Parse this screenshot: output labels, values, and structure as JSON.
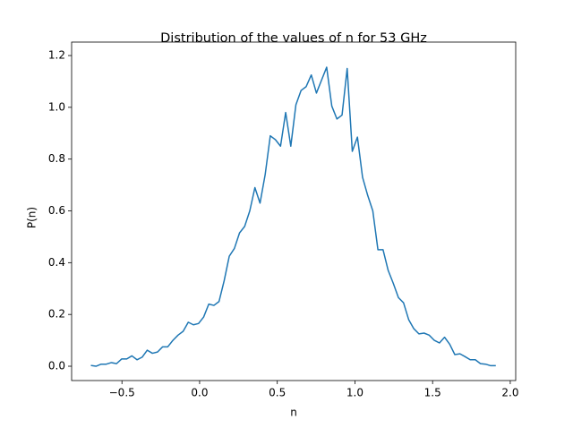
{
  "chart_data": {
    "type": "line",
    "title": "Distribution of the values of n for 53 GHz",
    "xlabel": "n",
    "ylabel": "P(n)",
    "xlim": [
      -0.824,
      2.035
    ],
    "ylim": [
      -0.0553,
      1.252
    ],
    "xticks": [
      {
        "value": -0.5,
        "label": "−0.5"
      },
      {
        "value": 0,
        "label": "0.0"
      },
      {
        "value": 0.5,
        "label": "0.5"
      },
      {
        "value": 1,
        "label": "1.0"
      },
      {
        "value": 1.5,
        "label": "1.5"
      },
      {
        "value": 2,
        "label": "2.0"
      }
    ],
    "yticks": [
      {
        "value": 0,
        "label": "0.0"
      },
      {
        "value": 0.2,
        "label": "0.2"
      },
      {
        "value": 0.4,
        "label": "0.4"
      },
      {
        "value": 0.6,
        "label": "0.6"
      },
      {
        "value": 0.8,
        "label": "0.8"
      },
      {
        "value": 1,
        "label": "1.0"
      },
      {
        "value": 1.2,
        "label": "1.2"
      }
    ],
    "color": "#1f77b4",
    "x": [
      -0.7,
      -0.667,
      -0.634,
      -0.601,
      -0.568,
      -0.535,
      -0.502,
      -0.469,
      -0.436,
      -0.403,
      -0.37,
      -0.337,
      -0.304,
      -0.271,
      -0.238,
      -0.205,
      -0.172,
      -0.139,
      -0.106,
      -0.073,
      -0.04,
      -0.007,
      0.026,
      0.059,
      0.092,
      0.125,
      0.158,
      0.191,
      0.224,
      0.257,
      0.29,
      0.323,
      0.356,
      0.389,
      0.422,
      0.455,
      0.488,
      0.521,
      0.554,
      0.587,
      0.62,
      0.653,
      0.686,
      0.719,
      0.752,
      0.785,
      0.818,
      0.851,
      0.884,
      0.917,
      0.95,
      0.983,
      1.016,
      1.049,
      1.082,
      1.115,
      1.148,
      1.181,
      1.214,
      1.247,
      1.28,
      1.313,
      1.346,
      1.379,
      1.412,
      1.445,
      1.478,
      1.511,
      1.544,
      1.577,
      1.61,
      1.643,
      1.676,
      1.709,
      1.742,
      1.775,
      1.808,
      1.841,
      1.874,
      1.907
    ],
    "values": [
      0.003,
      0.0,
      0.008,
      0.008,
      0.014,
      0.01,
      0.028,
      0.028,
      0.04,
      0.025,
      0.035,
      0.062,
      0.05,
      0.055,
      0.075,
      0.075,
      0.1,
      0.12,
      0.135,
      0.17,
      0.16,
      0.165,
      0.19,
      0.24,
      0.235,
      0.25,
      0.33,
      0.425,
      0.455,
      0.515,
      0.54,
      0.6,
      0.69,
      0.63,
      0.74,
      0.89,
      0.875,
      0.85,
      0.98,
      0.85,
      1.01,
      1.065,
      1.08,
      1.125,
      1.055,
      1.105,
      1.155,
      1.005,
      0.955,
      0.97,
      1.15,
      0.83,
      0.885,
      0.73,
      0.66,
      0.6,
      0.45,
      0.45,
      0.37,
      0.32,
      0.265,
      0.245,
      0.18,
      0.145,
      0.125,
      0.128,
      0.12,
      0.1,
      0.09,
      0.112,
      0.085,
      0.045,
      0.048,
      0.037,
      0.025,
      0.025,
      0.01,
      0.008,
      0.002,
      0.002
    ]
  }
}
